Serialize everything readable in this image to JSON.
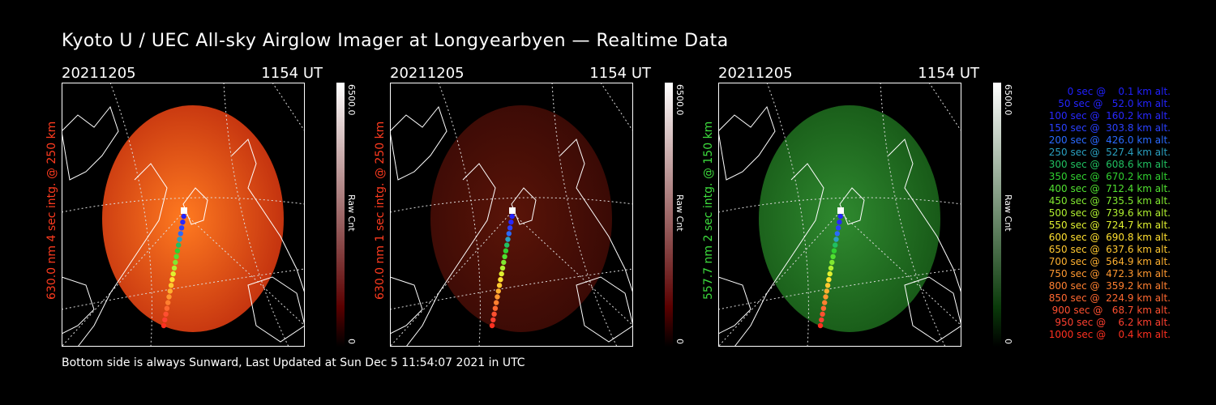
{
  "title": "Kyoto U / UEC All-sky Airglow Imager at Longyearbyen — Realtime Data",
  "footer": "Bottom side is always Sunward, Last Updated at Sun Dec  5 11:54:07 2021 in UTC",
  "panels": [
    {
      "date": "20211205",
      "time": "1154 UT",
      "label": "630.0 nm 4 sec intg. @ 250 km",
      "label_color": "#ff3b1f",
      "cb_max": "6500.0",
      "cb_unit": "Raw Cnt",
      "cb_min": "0",
      "cb_top": "#ffffff",
      "cb_bottom": "#5a0000",
      "disc_color": "#c4330f",
      "disc_glow": "#ff7a20"
    },
    {
      "date": "20211205",
      "time": "1154 UT",
      "label": "630.0 nm 1 sec intg. @ 250 km",
      "label_color": "#ff3b1f",
      "cb_max": "6500.0",
      "cb_unit": "Raw Cnt",
      "cb_min": "0",
      "cb_top": "#ffffff",
      "cb_bottom": "#5a0000",
      "disc_color": "#3a0a05",
      "disc_glow": "#5a1408"
    },
    {
      "date": "20211205",
      "time": "1154 UT",
      "label": "557.7 nm 2 sec intg. @ 150 km",
      "label_color": "#3ddc3d",
      "cb_max": "6500.0",
      "cb_unit": "Raw Cnt",
      "cb_min": "0",
      "cb_top": "#ffffff",
      "cb_bottom": "#0a3a0a",
      "disc_color": "#185a18",
      "disc_glow": "#2f8a2f"
    }
  ],
  "legend": [
    {
      "text": "   0 sec @    0.1 km alt.",
      "color": "#2020ff"
    },
    {
      "text": "  50 sec @   52.0 km alt.",
      "color": "#2424ff"
    },
    {
      "text": " 100 sec @  160.2 km alt.",
      "color": "#2828ff"
    },
    {
      "text": " 150 sec @  303.8 km alt.",
      "color": "#2a40ff"
    },
    {
      "text": " 200 sec @  426.0 km alt.",
      "color": "#2a6aff"
    },
    {
      "text": " 250 sec @  527.4 km alt.",
      "color": "#2aa0c0"
    },
    {
      "text": " 300 sec @  608.6 km alt.",
      "color": "#20c060"
    },
    {
      "text": " 350 sec @  670.2 km alt.",
      "color": "#30d030"
    },
    {
      "text": " 400 sec @  712.4 km alt.",
      "color": "#50e030"
    },
    {
      "text": " 450 sec @  735.5 km alt.",
      "color": "#80e830"
    },
    {
      "text": " 500 sec @  739.6 km alt.",
      "color": "#b0f030"
    },
    {
      "text": " 550 sec @  724.7 km alt.",
      "color": "#e0f030"
    },
    {
      "text": " 600 sec @  690.8 km alt.",
      "color": "#ffe030"
    },
    {
      "text": " 650 sec @  637.6 km alt.",
      "color": "#ffc830"
    },
    {
      "text": " 700 sec @  564.9 km alt.",
      "color": "#ffb030"
    },
    {
      "text": " 750 sec @  472.3 km alt.",
      "color": "#ff9830"
    },
    {
      "text": " 800 sec @  359.2 km alt.",
      "color": "#ff8030"
    },
    {
      "text": " 850 sec @  224.9 km alt.",
      "color": "#ff6830"
    },
    {
      "text": " 900 sec @   68.7 km alt.",
      "color": "#ff5030"
    },
    {
      "text": " 950 sec @    6.2 km alt.",
      "color": "#ff4030"
    },
    {
      "text": "1000 sec @    0.4 km alt.",
      "color": "#ff3020"
    }
  ]
}
